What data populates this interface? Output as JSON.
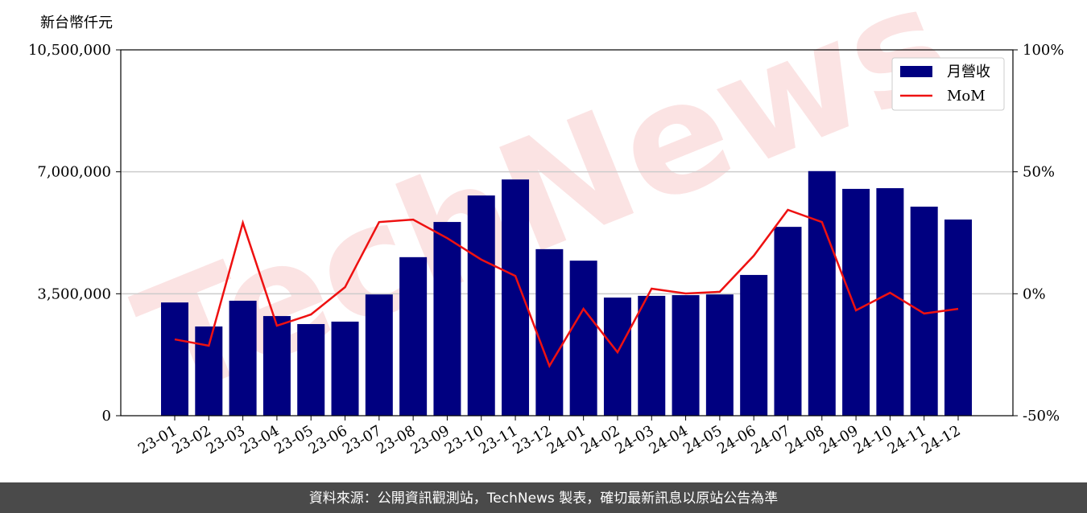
{
  "chart_data": {
    "type": "bar-line",
    "y_label": "新台幣仟元",
    "watermark": "TechNews",
    "footer": "資料來源：公開資訊觀測站，TechNews 製表，確切最新訊息以原站公告為準",
    "categories": [
      "23-01",
      "23-02",
      "23-03",
      "23-04",
      "23-05",
      "23-06",
      "23-07",
      "23-08",
      "23-09",
      "23-10",
      "23-11",
      "23-12",
      "24-01",
      "24-02",
      "24-03",
      "24-04",
      "24-05",
      "24-06",
      "24-07",
      "24-08",
      "24-09",
      "24-10",
      "24-11",
      "24-12"
    ],
    "series": [
      {
        "name": "月營收",
        "type": "bar",
        "color": "#000080",
        "axis": "y",
        "values": [
          3250000,
          2560000,
          3300000,
          2860000,
          2630000,
          2700000,
          3480000,
          4550000,
          5560000,
          6320000,
          6780000,
          4780000,
          4450000,
          3390000,
          3440000,
          3460000,
          3480000,
          4040000,
          5420000,
          7020000,
          6510000,
          6530000,
          6000000,
          5630000
        ]
      },
      {
        "name": "MoM",
        "type": "line",
        "color": "#ee1111",
        "axis": "y2",
        "values": [
          -18.7,
          -21.3,
          29.1,
          -13.1,
          -8.5,
          2.7,
          29.4,
          30.4,
          22.8,
          14.0,
          7.3,
          -29.6,
          -6.2,
          -24.0,
          2.1,
          0.1,
          0.8,
          15.6,
          34.4,
          29.4,
          -6.8,
          0.4,
          -8.1,
          -6.2
        ]
      }
    ],
    "ylim": [
      0,
      10500000
    ],
    "yticks": [
      0,
      {
        "value": 3500000,
        "label": "3,500,000"
      },
      {
        "value": 7000000,
        "label": "7,000,000"
      },
      {
        "value": 10500000,
        "label": "10,500,000"
      }
    ],
    "y2lim": [
      -50,
      100
    ],
    "y2ticks": [
      {
        "value": -50,
        "label": "-50%"
      },
      {
        "value": 0,
        "label": "0%"
      },
      {
        "value": 50,
        "label": "50%"
      },
      {
        "value": 100,
        "label": "100%"
      }
    ],
    "grid": true,
    "legend": "upper right"
  }
}
